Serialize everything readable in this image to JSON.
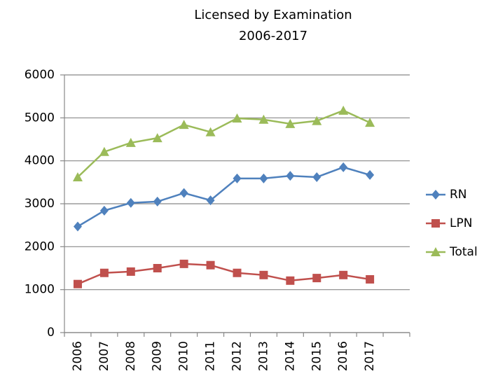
{
  "chart_data": {
    "type": "line",
    "title": "Licensed by Examination",
    "subtitle": "2006-2017",
    "categories": [
      "2006",
      "2007",
      "2008",
      "2009",
      "2010",
      "2011",
      "2012",
      "2013",
      "2014",
      "2015",
      "2016",
      "2017"
    ],
    "series": [
      {
        "name": "RN",
        "color": "#4f81bd",
        "marker": "diamond",
        "values": [
          2470,
          2840,
          3020,
          3050,
          3250,
          3080,
          3590,
          3590,
          3650,
          3620,
          3850,
          3670
        ]
      },
      {
        "name": "LPN",
        "color": "#c0504d",
        "marker": "square",
        "values": [
          1130,
          1390,
          1420,
          1500,
          1600,
          1570,
          1390,
          1340,
          1210,
          1270,
          1340,
          1240
        ]
      },
      {
        "name": "Total",
        "color": "#9bbb59",
        "marker": "triangle",
        "values": [
          3620,
          4210,
          4420,
          4530,
          4840,
          4670,
          4990,
          4960,
          4860,
          4930,
          5170,
          4890
        ]
      }
    ],
    "ylim": [
      0,
      6000
    ],
    "yticks": [
      0,
      1000,
      2000,
      3000,
      4000,
      5000,
      6000
    ],
    "grid": true,
    "legend": "right"
  }
}
